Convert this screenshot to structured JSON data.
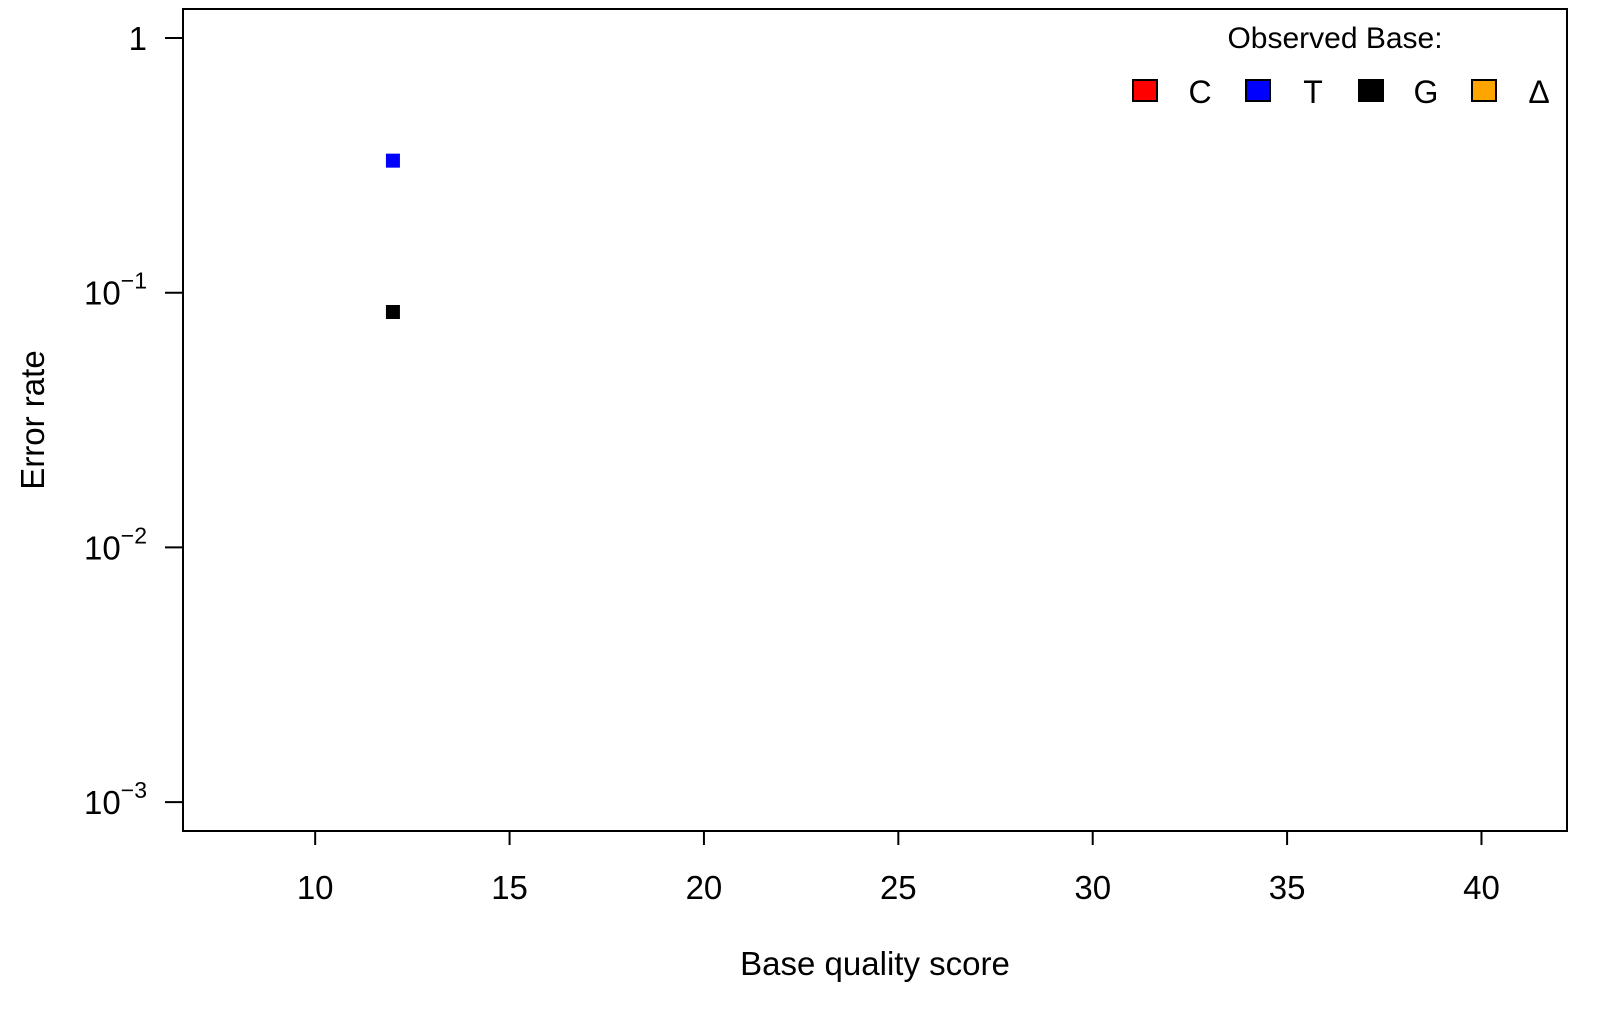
{
  "chart_data": {
    "type": "scatter",
    "title": "",
    "xlabel": "Base quality score",
    "ylabel": "Error rate",
    "xscale": "linear",
    "yscale": "log",
    "xlim": [
      6.6,
      42.2
    ],
    "ylim": [
      0.00077,
      1.3
    ],
    "grid": false,
    "x_ticks": [
      {
        "value": 10,
        "label": "10"
      },
      {
        "value": 15,
        "label": "15"
      },
      {
        "value": 20,
        "label": "20"
      },
      {
        "value": 25,
        "label": "25"
      },
      {
        "value": 30,
        "label": "30"
      },
      {
        "value": 35,
        "label": "35"
      },
      {
        "value": 40,
        "label": "40"
      }
    ],
    "y_ticks": [
      {
        "value": 1,
        "base": "1",
        "exp": ""
      },
      {
        "value": 0.1,
        "base": "10",
        "exp": "−1"
      },
      {
        "value": 0.01,
        "base": "10",
        "exp": "−2"
      },
      {
        "value": 0.001,
        "base": "10",
        "exp": "−3"
      }
    ],
    "legend": {
      "title": "Observed Base:",
      "position": "top-right",
      "items": [
        {
          "label": "C",
          "color": "#ff0000"
        },
        {
          "label": "T",
          "color": "#0000ff"
        },
        {
          "label": "G",
          "color": "#000000"
        },
        {
          "label": "Δ",
          "color": "#ffa500"
        }
      ]
    },
    "series": [
      {
        "name": "C",
        "color": "#ff0000",
        "points": []
      },
      {
        "name": "T",
        "color": "#0000ff",
        "points": [
          {
            "x": 12,
            "y": 0.33
          }
        ]
      },
      {
        "name": "G",
        "color": "#000000",
        "points": [
          {
            "x": 12,
            "y": 0.084
          }
        ]
      },
      {
        "name": "Δ",
        "color": "#ffa500",
        "points": []
      }
    ]
  }
}
